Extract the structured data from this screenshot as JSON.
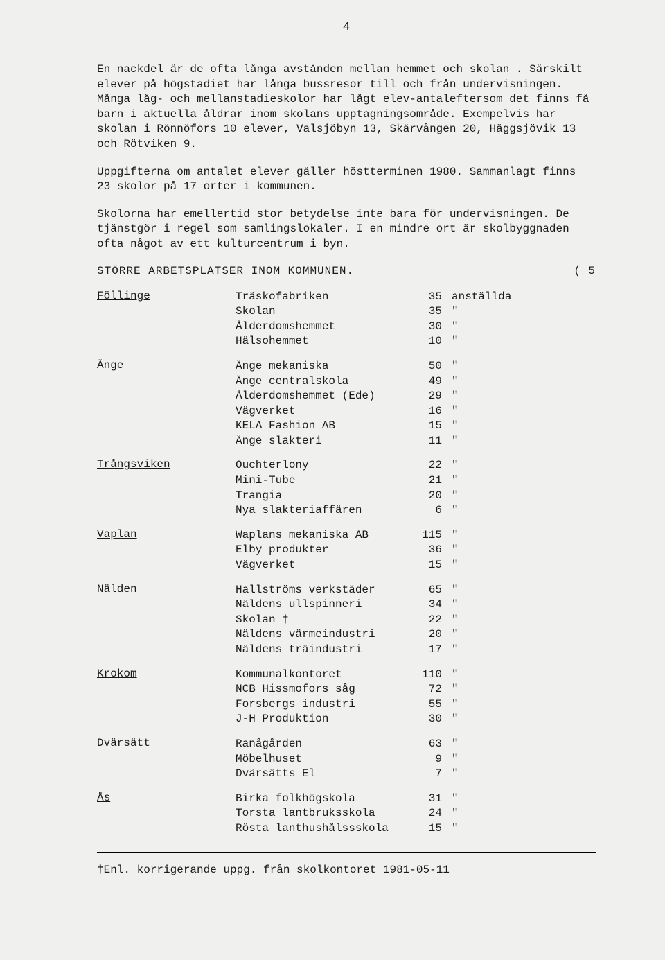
{
  "page_number": "4",
  "paragraphs": [
    "En nackdel är de ofta långa avstånden mellan hemmet och skolan . Särskilt elever på högstadiet har långa bussresor till och från undervisningen. Många låg- och mellanstadieskolor har lågt elev-antaleftersom det finns få barn i aktuella åldrar inom skolans upptagningsområde. Exempelvis har skolan i Rönnöfors 10 elever, Valsjöbyn 13, Skärvången 20, Häggsjövik 13 och Rötviken 9.",
    "Uppgifterna om antalet elever gäller höstterminen 1980. Sammanlagt finns 23 skolor på 17 orter i kommunen.",
    "Skolorna har emellertid stor betydelse inte bara för undervisningen. De tjänstgör i regel som samlingslokaler. I en mindre ort är skolbyggnaden ofta något av ett kulturcentrum i byn."
  ],
  "section_title": "STÖRRE ARBETSPLATSER INOM KOMMUNEN.",
  "section_note_right": "( 5",
  "unit_full": "anställda",
  "unit_ditto": "\"",
  "locations": [
    {
      "name": "Föllinge",
      "rows": [
        {
          "entity": "Träskofabriken",
          "count": "35",
          "unit_full": true
        },
        {
          "entity": "Skolan",
          "count": "35"
        },
        {
          "entity": "Ålderdomshemmet",
          "count": "30"
        },
        {
          "entity": "Hälsohemmet",
          "count": "10"
        }
      ]
    },
    {
      "name": "Änge",
      "rows": [
        {
          "entity": "Änge mekaniska",
          "count": "50"
        },
        {
          "entity": "Änge centralskola",
          "count": "49"
        },
        {
          "entity": "Ålderdomshemmet (Ede)",
          "count": "29"
        },
        {
          "entity": "Vägverket",
          "count": "16"
        },
        {
          "entity": "KELA Fashion AB",
          "count": "15"
        },
        {
          "entity": "Änge slakteri",
          "count": "11"
        }
      ]
    },
    {
      "name": "Trångsviken",
      "rows": [
        {
          "entity": "Ouchterlony",
          "count": "22"
        },
        {
          "entity": "Mini-Tube",
          "count": "21"
        },
        {
          "entity": "Trangia",
          "count": "20"
        },
        {
          "entity": "Nya slakteriaffären",
          "count": "6"
        }
      ]
    },
    {
      "name": "Vaplan",
      "rows": [
        {
          "entity": "Waplans mekaniska AB",
          "count": "115"
        },
        {
          "entity": "Elby produkter",
          "count": "36"
        },
        {
          "entity": "Vägverket",
          "count": "15"
        }
      ]
    },
    {
      "name": "Nälden",
      "rows": [
        {
          "entity": "Hallströms verkstäder",
          "count": "65"
        },
        {
          "entity": "Näldens ullspinneri",
          "count": "34"
        },
        {
          "entity": "Skolan †",
          "count": "22"
        },
        {
          "entity": "Näldens värmeindustri",
          "count": "20"
        },
        {
          "entity": "Näldens träindustri",
          "count": "17"
        }
      ]
    },
    {
      "name": "Krokom",
      "rows": [
        {
          "entity": "Kommunalkontoret",
          "count": "110"
        },
        {
          "entity": "NCB Hissmofors såg",
          "count": "72"
        },
        {
          "entity": "Forsbergs industri",
          "count": "55"
        },
        {
          "entity": "J-H Produktion",
          "count": "30"
        }
      ]
    },
    {
      "name": "Dvärsätt",
      "rows": [
        {
          "entity": "Ranågården",
          "count": "63"
        },
        {
          "entity": "Möbelhuset",
          "count": "9"
        },
        {
          "entity": "Dvärsätts El",
          "count": "7"
        }
      ]
    },
    {
      "name": "Ås",
      "rows": [
        {
          "entity": "Birka folkhögskola",
          "count": "31"
        },
        {
          "entity": "Torsta lantbruksskola",
          "count": "24"
        },
        {
          "entity": "Rösta lanthushålssskola",
          "count": "15"
        }
      ]
    }
  ],
  "footnote_marker": "†",
  "footnote_text": "Enl. korrigerande uppg. från skolkontoret 1981-05-11"
}
